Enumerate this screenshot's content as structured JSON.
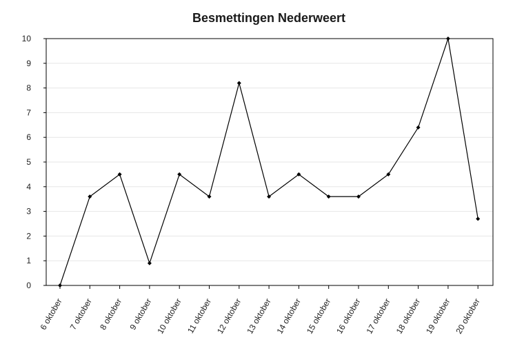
{
  "chart_data": {
    "type": "line",
    "title": "Besmettingen Nederweert",
    "xlabel": "",
    "ylabel": "",
    "categories": [
      "6 oktober",
      "7 oktober",
      "8 oktober",
      "9 oktober",
      "10 oktober",
      "11 oktober",
      "12 oktober",
      "13 oktober",
      "14 oktober",
      "15 oktober",
      "16 oktober",
      "17 oktober",
      "18 oktober",
      "19 oktober",
      "20 oktober"
    ],
    "values": [
      0,
      3.6,
      4.5,
      0.9,
      4.5,
      3.6,
      8.2,
      3.6,
      4.5,
      3.6,
      3.6,
      4.5,
      6.4,
      10,
      2.7
    ],
    "ylim": [
      0,
      10
    ],
    "yticks": [
      0,
      1,
      2,
      3,
      4,
      5,
      6,
      7,
      8,
      9,
      10
    ],
    "grid": true,
    "legend": "none",
    "colors": {
      "line": "#000000",
      "grid": "#e6e6e6",
      "frame": "#000000"
    }
  }
}
